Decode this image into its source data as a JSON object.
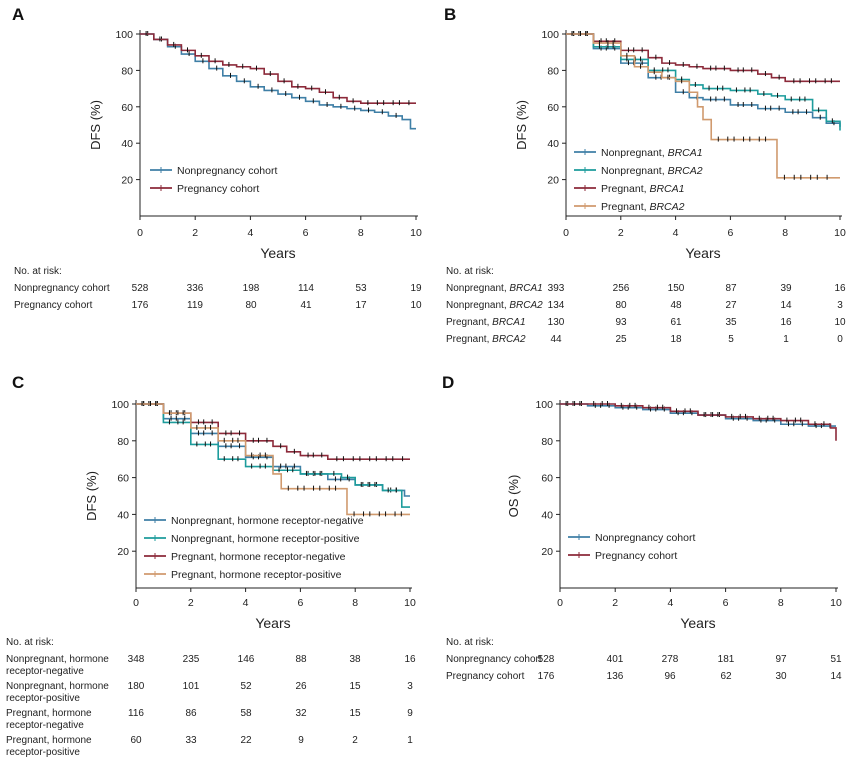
{
  "figure": {
    "background": "#ffffff"
  },
  "colors": {
    "nonpreg_blue": "#3f7fa6",
    "nonpreg_teal": "#1d9c9c",
    "preg_red": "#8c2a3a",
    "preg_tan": "#d09a6e",
    "censor": "#111111"
  },
  "chart_data": [
    {
      "panel": "A",
      "type": "line",
      "xlabel": "Years",
      "ylabel": "DFS (%)",
      "xlim": [
        0,
        10
      ],
      "ylim": [
        0,
        100
      ],
      "xticks": [
        0,
        2,
        4,
        6,
        8,
        10
      ],
      "yticks": [
        20,
        40,
        60,
        80,
        100
      ],
      "legend_position": "bottom-left",
      "series": [
        {
          "name": "Nonpregnancy cohort",
          "color": "#3f7fa6",
          "x": [
            0,
            0.5,
            1,
            1.5,
            2,
            2.5,
            3,
            3.5,
            4,
            4.5,
            5,
            5.5,
            6,
            6.5,
            7,
            7.5,
            8,
            8.5,
            9,
            9.5,
            9.8,
            10
          ],
          "y": [
            100,
            97,
            93,
            89,
            85,
            81,
            77,
            74,
            71,
            69,
            67,
            65,
            63,
            61,
            60,
            59,
            58,
            57,
            55,
            53,
            48,
            48
          ]
        },
        {
          "name": "Pregnancy cohort",
          "color": "#8c2a3a",
          "x": [
            0,
            0.5,
            1,
            1.5,
            2,
            2.5,
            3,
            3.5,
            4,
            4.5,
            5,
            5.5,
            6,
            6.5,
            7,
            7.5,
            8,
            10
          ],
          "y": [
            100,
            97,
            94,
            91,
            88,
            85,
            83,
            82,
            81,
            78,
            74,
            71,
            70,
            68,
            65,
            63,
            62,
            62
          ]
        }
      ],
      "at_risk": {
        "title": "No. at risk:",
        "rows": [
          {
            "label": "Nonpregnancy cohort",
            "label_parts": [],
            "values": [
              528,
              336,
              198,
              114,
              53,
              19
            ]
          },
          {
            "label": "Pregnancy cohort",
            "label_parts": [],
            "values": [
              176,
              119,
              80,
              41,
              17,
              10
            ]
          }
        ]
      }
    },
    {
      "panel": "B",
      "type": "line",
      "xlabel": "Years",
      "ylabel": "DFS (%)",
      "xlim": [
        0,
        10
      ],
      "ylim": [
        0,
        100
      ],
      "xticks": [
        0,
        2,
        4,
        6,
        8,
        10
      ],
      "yticks": [
        20,
        40,
        60,
        80,
        100
      ],
      "legend_position": "bottom-left",
      "series": [
        {
          "name": "Nonpregnant, BRCA1",
          "name_prefix": "Nonpregnant, ",
          "name_italic": "BRCA1",
          "color": "#3f7fa6",
          "x": [
            0,
            1,
            2,
            3,
            4,
            4.5,
            5,
            6,
            7,
            8,
            9,
            9.5,
            10
          ],
          "y": [
            100,
            92,
            84,
            76,
            68,
            65,
            64,
            61,
            59,
            57,
            54,
            51,
            49
          ]
        },
        {
          "name": "Nonpregnant, BRCA2",
          "name_prefix": "Nonpregnant, ",
          "name_italic": "BRCA2",
          "color": "#1d9c9c",
          "x": [
            0,
            1,
            2,
            3,
            4,
            4.5,
            5,
            6,
            7,
            7.5,
            8,
            9,
            9.5,
            10
          ],
          "y": [
            100,
            93,
            86,
            80,
            75,
            72,
            70,
            69,
            67,
            66,
            64,
            58,
            52,
            47
          ]
        },
        {
          "name": "Pregnant, BRCA1",
          "name_prefix": "Pregnant, ",
          "name_italic": "BRCA1",
          "color": "#8c2a3a",
          "x": [
            0,
            1,
            2,
            3,
            3.5,
            4,
            4.5,
            5,
            6,
            7,
            7.5,
            8,
            10
          ],
          "y": [
            100,
            96,
            91,
            87,
            84,
            83,
            82,
            81,
            80,
            78,
            76,
            74,
            74
          ]
        },
        {
          "name": "Pregnant, BRCA2",
          "name_prefix": "Pregnant, ",
          "name_italic": "BRCA2",
          "color": "#d09a6e",
          "x": [
            0,
            1,
            2,
            2.5,
            3,
            3.5,
            4,
            4.5,
            4.8,
            5,
            5.3,
            7.6,
            7.7,
            9.8,
            10
          ],
          "y": [
            100,
            95,
            88,
            82,
            79,
            76,
            74,
            68,
            60,
            53,
            42,
            42,
            21,
            21,
            21
          ]
        }
      ],
      "at_risk": {
        "title": "No. at risk:",
        "rows": [
          {
            "label": "Nonpregnant, BRCA1",
            "label_parts": [
              "Nonpregnant, ",
              "BRCA1"
            ],
            "values": [
              393,
              256,
              150,
              87,
              39,
              16
            ]
          },
          {
            "label": "Nonpregnant, BRCA2",
            "label_parts": [
              "Nonpregnant, ",
              "BRCA2"
            ],
            "values": [
              134,
              80,
              48,
              27,
              14,
              3
            ]
          },
          {
            "label": "Pregnant, BRCA1",
            "label_parts": [
              "Pregnant, ",
              "BRCA1"
            ],
            "values": [
              130,
              93,
              61,
              35,
              16,
              10
            ]
          },
          {
            "label": "Pregnant, BRCA2",
            "label_parts": [
              "Pregnant, ",
              "BRCA2"
            ],
            "values": [
              44,
              25,
              18,
              5,
              1,
              0
            ]
          }
        ]
      }
    },
    {
      "panel": "C",
      "type": "line",
      "xlabel": "Years",
      "ylabel": "DFS (%)",
      "xlim": [
        0,
        10
      ],
      "ylim": [
        0,
        100
      ],
      "xticks": [
        0,
        2,
        4,
        6,
        8,
        10
      ],
      "yticks": [
        20,
        40,
        60,
        80,
        100
      ],
      "legend_position": "bottom-left",
      "series": [
        {
          "name": "Nonpregnant, hormone receptor-negative",
          "color": "#3f7fa6",
          "x": [
            0,
            1,
            2,
            3,
            4,
            5,
            6,
            7,
            8,
            9,
            9.8,
            10
          ],
          "y": [
            100,
            92,
            84,
            77,
            71,
            66,
            62,
            59,
            56,
            53,
            50,
            50
          ]
        },
        {
          "name": "Nonpregnant, hormone receptor-positive",
          "color": "#1d9c9c",
          "x": [
            0,
            1,
            2,
            3,
            4,
            5,
            6,
            7,
            7.5,
            8,
            9,
            9.7,
            10
          ],
          "y": [
            100,
            90,
            78,
            70,
            66,
            64,
            62,
            62,
            60,
            56,
            53,
            44,
            44
          ]
        },
        {
          "name": "Pregnant, hormone receptor-negative",
          "color": "#8c2a3a",
          "x": [
            0,
            1,
            2,
            3,
            4,
            5,
            5.5,
            6,
            7,
            10
          ],
          "y": [
            100,
            95,
            90,
            84,
            80,
            77,
            74,
            72,
            70,
            70
          ]
        },
        {
          "name": "Pregnant, hormone receptor-positive",
          "color": "#d09a6e",
          "x": [
            0,
            1,
            2,
            3,
            4,
            5,
            5.3,
            7.6,
            7.7,
            10
          ],
          "y": [
            100,
            95,
            87,
            80,
            72,
            62,
            54,
            54,
            40,
            40
          ]
        }
      ],
      "at_risk": {
        "title": "No. at risk:",
        "rows": [
          {
            "label": "Nonpregnant, hormone receptor-negative",
            "label_parts": [
              "Nonpregnant, hormone",
              "receptor-negative"
            ],
            "values": [
              348,
              235,
              146,
              88,
              38,
              16
            ]
          },
          {
            "label": "Nonpregnant, hormone receptor-positive",
            "label_parts": [
              "Nonpregnant, hormone",
              "receptor-positive"
            ],
            "values": [
              180,
              101,
              52,
              26,
              15,
              3
            ]
          },
          {
            "label": "Pregnant, hormone receptor-negative",
            "label_parts": [
              "Pregnant, hormone",
              "receptor-negative"
            ],
            "values": [
              116,
              86,
              58,
              32,
              15,
              9
            ]
          },
          {
            "label": "Pregnant, hormone receptor-positive",
            "label_parts": [
              "Pregnant, hormone",
              "receptor-positive"
            ],
            "values": [
              60,
              33,
              22,
              9,
              2,
              1
            ]
          }
        ]
      }
    },
    {
      "panel": "D",
      "type": "line",
      "xlabel": "Years",
      "ylabel": "OS (%)",
      "xlim": [
        0,
        10
      ],
      "ylim": [
        0,
        100
      ],
      "xticks": [
        0,
        2,
        4,
        6,
        8,
        10
      ],
      "yticks": [
        20,
        40,
        60,
        80,
        100
      ],
      "legend_position": "bottom-left",
      "series": [
        {
          "name": "Nonpregnancy cohort",
          "color": "#3f7fa6",
          "x": [
            0,
            1,
            2,
            3,
            4,
            5,
            6,
            7,
            8,
            9,
            10
          ],
          "y": [
            100,
            99,
            98,
            97,
            95,
            94,
            92,
            91,
            89,
            88,
            88
          ]
        },
        {
          "name": "Pregnancy cohort",
          "color": "#8c2a3a",
          "x": [
            0,
            1,
            2,
            3,
            4,
            5,
            6,
            7,
            8,
            9,
            9.8,
            10
          ],
          "y": [
            100,
            100,
            99,
            98,
            96,
            94,
            93,
            92,
            91,
            89,
            87,
            80
          ]
        }
      ],
      "at_risk": {
        "title": "No. at risk:",
        "rows": [
          {
            "label": "Nonpregnancy cohort",
            "label_parts": [],
            "values": [
              528,
              401,
              278,
              181,
              97,
              51
            ]
          },
          {
            "label": "Pregnancy cohort",
            "label_parts": [],
            "values": [
              176,
              136,
              96,
              62,
              30,
              14
            ]
          }
        ]
      }
    }
  ]
}
